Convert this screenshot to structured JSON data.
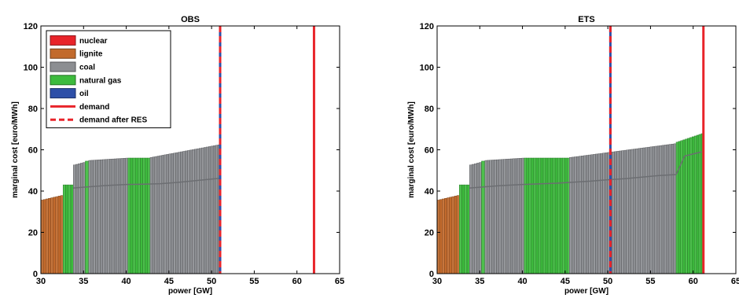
{
  "colors": {
    "nuclear": "#e8242a",
    "lignite": "#c26a2c",
    "coal": "#8c8e92",
    "natural gas": "#3dbb3d",
    "oil": "#2e4fa8",
    "demand": "#e8242a",
    "demand_after_res": "#e8242a"
  },
  "legend": {
    "items": [
      {
        "label": "nuclear",
        "kind": "patch",
        "fuel": "nuclear"
      },
      {
        "label": "lignite",
        "kind": "patch",
        "fuel": "lignite"
      },
      {
        "label": "coal",
        "kind": "patch",
        "fuel": "coal"
      },
      {
        "label": "natural gas",
        "kind": "patch",
        "fuel": "natural gas"
      },
      {
        "label": "oil",
        "kind": "patch",
        "fuel": "oil"
      },
      {
        "label": "demand",
        "kind": "line",
        "style": "solid"
      },
      {
        "label": "demand after RES",
        "kind": "line",
        "style": "dashed"
      }
    ]
  },
  "chart_data": [
    {
      "type": "bar",
      "title": "OBS",
      "xlabel": "power [GW]",
      "ylabel": "marginal cost [euro/MWh]",
      "xlim": [
        30,
        65
      ],
      "ylim": [
        0,
        120
      ],
      "xticks": [
        30,
        35,
        40,
        45,
        50,
        55,
        60,
        65
      ],
      "yticks": [
        0,
        20,
        40,
        60,
        80,
        100,
        120
      ],
      "legend_position": "top-left",
      "grid": false,
      "segments": [
        {
          "fuel": "lignite",
          "x0": 30.0,
          "x1": 32.6,
          "y0": 35.5,
          "y1": 38.0
        },
        {
          "fuel": "natural gas",
          "x0": 32.6,
          "x1": 33.8,
          "y0": 43.0,
          "y1": 43.0
        },
        {
          "fuel": "coal",
          "x0": 33.8,
          "x1": 35.2,
          "y0": 52.5,
          "y1": 54.0
        },
        {
          "fuel": "natural gas",
          "x0": 35.2,
          "x1": 35.6,
          "y0": 54.5,
          "y1": 54.5
        },
        {
          "fuel": "coal",
          "x0": 35.6,
          "x1": 40.2,
          "y0": 54.8,
          "y1": 56.0
        },
        {
          "fuel": "natural gas",
          "x0": 40.2,
          "x1": 42.8,
          "y0": 56.0,
          "y1": 56.0
        },
        {
          "fuel": "coal",
          "x0": 42.8,
          "x1": 51.0,
          "y0": 56.2,
          "y1": 62.5
        }
      ],
      "inner_line": [
        [
          33.8,
          41.5
        ],
        [
          36,
          42.2
        ],
        [
          38,
          42.8
        ],
        [
          40,
          43.2
        ],
        [
          42,
          43.3
        ],
        [
          44,
          43.6
        ],
        [
          46,
          44.2
        ],
        [
          48,
          45.0
        ],
        [
          50,
          45.8
        ],
        [
          51,
          46.2
        ]
      ],
      "demand": 62.0,
      "demand_after_res": 51.0
    },
    {
      "type": "bar",
      "title": "ETS",
      "xlabel": "power [GW]",
      "ylabel": "marginal cost [euro/MWh]",
      "xlim": [
        30,
        65
      ],
      "ylim": [
        0,
        120
      ],
      "xticks": [
        30,
        35,
        40,
        45,
        50,
        55,
        60,
        65
      ],
      "yticks": [
        0,
        20,
        40,
        60,
        80,
        100,
        120
      ],
      "grid": false,
      "segments": [
        {
          "fuel": "lignite",
          "x0": 30.0,
          "x1": 32.6,
          "y0": 35.5,
          "y1": 38.0
        },
        {
          "fuel": "natural gas",
          "x0": 32.6,
          "x1": 33.8,
          "y0": 43.0,
          "y1": 43.0
        },
        {
          "fuel": "coal",
          "x0": 33.8,
          "x1": 35.2,
          "y0": 52.5,
          "y1": 54.0
        },
        {
          "fuel": "natural gas",
          "x0": 35.2,
          "x1": 35.6,
          "y0": 54.5,
          "y1": 54.5
        },
        {
          "fuel": "coal",
          "x0": 35.6,
          "x1": 40.2,
          "y0": 54.8,
          "y1": 56.0
        },
        {
          "fuel": "natural gas",
          "x0": 40.2,
          "x1": 45.5,
          "y0": 56.0,
          "y1": 56.0
        },
        {
          "fuel": "coal",
          "x0": 45.5,
          "x1": 58.0,
          "y0": 56.2,
          "y1": 63.0
        },
        {
          "fuel": "natural gas",
          "x0": 58.0,
          "x1": 61.2,
          "y0": 63.5,
          "y1": 68.0
        }
      ],
      "inner_line": [
        [
          33.8,
          41.5
        ],
        [
          36,
          42.2
        ],
        [
          38,
          42.8
        ],
        [
          40,
          43.2
        ],
        [
          44,
          43.8
        ],
        [
          48,
          44.8
        ],
        [
          50,
          45.5
        ],
        [
          52,
          46.0
        ],
        [
          54,
          46.8
        ],
        [
          56,
          47.5
        ],
        [
          58,
          48.0
        ],
        [
          59,
          57.0
        ],
        [
          61,
          59.0
        ]
      ],
      "demand": 61.2,
      "demand_after_res": 50.3
    }
  ]
}
